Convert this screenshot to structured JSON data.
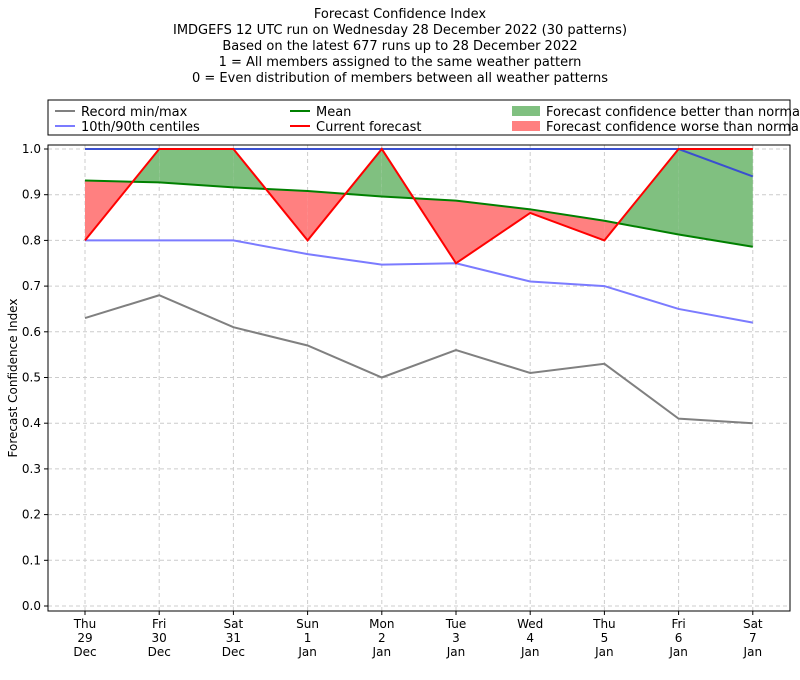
{
  "chart_data": {
    "type": "line",
    "title_lines": [
      "Forecast Confidence Index",
      "IMDGEFS 12 UTC run on Wednesday 28 December 2022 (30 patterns)",
      "Based on the latest 677 runs up to 28 December 2022",
      "1 = All members assigned to the same weather pattern",
      "0 = Even distribution of members between all weather patterns"
    ],
    "ylabel": "Forecast Confidence Index",
    "ylim": [
      0,
      1
    ],
    "yticks": [
      "0.0",
      "0.1",
      "0.2",
      "0.3",
      "0.4",
      "0.5",
      "0.6",
      "0.7",
      "0.8",
      "0.9",
      "1.0"
    ],
    "categories": [
      [
        "Thu",
        "29",
        "Dec"
      ],
      [
        "Fri",
        "30",
        "Dec"
      ],
      [
        "Sat",
        "31",
        "Dec"
      ],
      [
        "Sun",
        "1",
        "Jan"
      ],
      [
        "Mon",
        "2",
        "Jan"
      ],
      [
        "Tue",
        "3",
        "Jan"
      ],
      [
        "Wed",
        "4",
        "Jan"
      ],
      [
        "Thu",
        "5",
        "Jan"
      ],
      [
        "Fri",
        "6",
        "Jan"
      ],
      [
        "Sat",
        "7",
        "Jan"
      ]
    ],
    "grid": true,
    "legend_position": "top",
    "series": [
      {
        "name": "Record min/max",
        "color": "#808080",
        "min": [
          0.63,
          0.68,
          0.61,
          0.57,
          0.5,
          0.56,
          0.51,
          0.53,
          0.41,
          0.4
        ],
        "max": [
          1,
          1,
          1,
          1,
          1,
          1,
          1,
          1,
          1,
          1
        ]
      },
      {
        "name": "10th/90th centiles",
        "color": "#7b7bff",
        "p10": [
          0.8,
          0.8,
          0.8,
          0.77,
          0.747,
          0.75,
          0.71,
          0.7,
          0.65,
          0.62
        ],
        "p90": [
          1,
          1,
          1,
          1,
          1,
          1,
          1,
          1,
          1,
          0.94
        ]
      },
      {
        "name": "Mean",
        "color": "#008000",
        "values": [
          0.931,
          0.927,
          0.916,
          0.908,
          0.896,
          0.887,
          0.868,
          0.843,
          0.813,
          0.786
        ]
      },
      {
        "name": "Current forecast",
        "color": "#ff0000",
        "values": [
          0.8,
          1.0,
          1.0,
          0.8,
          1.0,
          0.75,
          0.86,
          0.8,
          1.0,
          1.0
        ]
      }
    ],
    "fills": [
      {
        "name": "Forecast confidence better than normal",
        "color": "#80c080"
      },
      {
        "name": "Forecast confidence worse than normal",
        "color": "#ff8080"
      }
    ]
  }
}
